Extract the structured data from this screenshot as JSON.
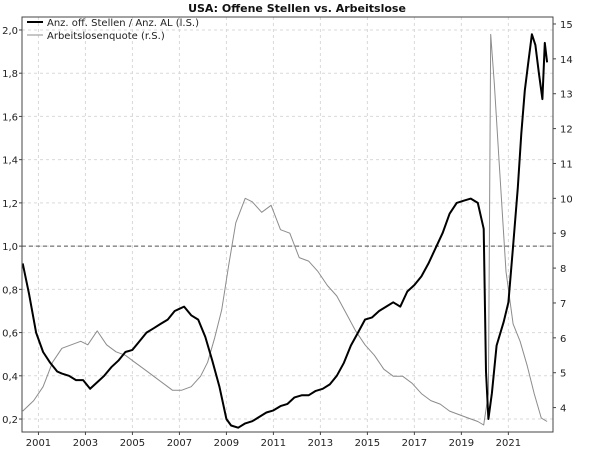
{
  "chart_data": {
    "type": "line",
    "title": "USA: Offene Stellen vs. Arbeitslose",
    "grid": true,
    "legend_position": "top-left",
    "x_axis": {
      "range": [
        2000.3,
        2022.9
      ],
      "tick_labels": [
        "2001",
        "2003",
        "2005",
        "2007",
        "2009",
        "2011",
        "2013",
        "2015",
        "2017",
        "2019",
        "2021"
      ],
      "tick_values": [
        2001,
        2003,
        2005,
        2007,
        2009,
        2011,
        2013,
        2015,
        2017,
        2019,
        2021
      ]
    },
    "y_left": {
      "range": [
        0.14,
        2.06
      ],
      "tick_labels": [
        "0,2",
        "0,4",
        "0,6",
        "0,8",
        "1,0",
        "1,2",
        "1,4",
        "1,6",
        "1,8",
        "2,0"
      ],
      "tick_values": [
        0.2,
        0.4,
        0.6,
        0.8,
        1.0,
        1.2,
        1.4,
        1.6,
        1.8,
        2.0
      ]
    },
    "y_right": {
      "range": [
        3.3,
        15.2
      ],
      "tick_labels": [
        "4",
        "5",
        "6",
        "7",
        "8",
        "9",
        "10",
        "11",
        "12",
        "13",
        "14",
        "15"
      ],
      "tick_values": [
        4,
        5,
        6,
        7,
        8,
        9,
        10,
        11,
        12,
        13,
        14,
        15
      ]
    },
    "reference_line": {
      "axis": "left",
      "value": 1.0,
      "style": "dashed"
    },
    "series": [
      {
        "name": "Anz. off. Stellen / Anz. AL (l.S.)",
        "axis": "left",
        "color": "#000000",
        "x": [
          2000.33,
          2000.6,
          2000.9,
          2001.2,
          2001.5,
          2001.8,
          2002.0,
          2002.3,
          2002.6,
          2002.9,
          2003.2,
          2003.5,
          2003.8,
          2004.1,
          2004.4,
          2004.7,
          2005.0,
          2005.3,
          2005.6,
          2005.9,
          2006.2,
          2006.5,
          2006.8,
          2007.0,
          2007.2,
          2007.5,
          2007.8,
          2008.1,
          2008.4,
          2008.7,
          2009.0,
          2009.2,
          2009.5,
          2009.8,
          2010.1,
          2010.4,
          2010.7,
          2011.0,
          2011.3,
          2011.6,
          2011.9,
          2012.2,
          2012.5,
          2012.8,
          2013.1,
          2013.4,
          2013.7,
          2014.0,
          2014.3,
          2014.6,
          2014.9,
          2015.2,
          2015.5,
          2015.8,
          2016.1,
          2016.4,
          2016.7,
          2017.0,
          2017.3,
          2017.6,
          2017.9,
          2018.2,
          2018.5,
          2018.8,
          2019.1,
          2019.4,
          2019.7,
          2019.95,
          2020.05,
          2020.15,
          2020.3,
          2020.5,
          2020.8,
          2021.0,
          2021.2,
          2021.4,
          2021.55,
          2021.7,
          2021.85,
          2022.0,
          2022.15,
          2022.3,
          2022.45,
          2022.55,
          2022.65
        ],
        "values": [
          0.92,
          0.78,
          0.6,
          0.51,
          0.46,
          0.42,
          0.41,
          0.4,
          0.38,
          0.38,
          0.34,
          0.37,
          0.4,
          0.44,
          0.47,
          0.51,
          0.52,
          0.56,
          0.6,
          0.62,
          0.64,
          0.66,
          0.7,
          0.71,
          0.72,
          0.68,
          0.66,
          0.58,
          0.47,
          0.35,
          0.2,
          0.17,
          0.16,
          0.18,
          0.19,
          0.21,
          0.23,
          0.24,
          0.26,
          0.27,
          0.3,
          0.31,
          0.31,
          0.33,
          0.34,
          0.36,
          0.4,
          0.46,
          0.54,
          0.6,
          0.66,
          0.67,
          0.7,
          0.72,
          0.74,
          0.72,
          0.79,
          0.82,
          0.86,
          0.92,
          0.99,
          1.06,
          1.15,
          1.2,
          1.21,
          1.22,
          1.2,
          1.08,
          0.42,
          0.2,
          0.32,
          0.54,
          0.65,
          0.74,
          1.0,
          1.27,
          1.52,
          1.72,
          1.85,
          1.98,
          1.93,
          1.8,
          1.68,
          1.94,
          1.85
        ]
      },
      {
        "name": "Arbeitslosenquote (r.S.)",
        "axis": "right",
        "color": "#8c8c8c",
        "x": [
          2000.33,
          2000.8,
          2001.2,
          2001.6,
          2002.0,
          2002.4,
          2002.8,
          2003.1,
          2003.5,
          2003.9,
          2004.3,
          2004.7,
          2005.1,
          2005.5,
          2005.9,
          2006.3,
          2006.7,
          2007.1,
          2007.5,
          2007.9,
          2008.2,
          2008.5,
          2008.8,
          2009.1,
          2009.4,
          2009.8,
          2010.1,
          2010.5,
          2010.9,
          2011.3,
          2011.7,
          2012.1,
          2012.5,
          2012.9,
          2013.3,
          2013.7,
          2014.1,
          2014.5,
          2014.9,
          2015.3,
          2015.7,
          2016.1,
          2016.5,
          2016.9,
          2017.3,
          2017.7,
          2018.1,
          2018.5,
          2018.9,
          2019.3,
          2019.7,
          2019.95,
          2020.15,
          2020.25,
          2020.4,
          2020.6,
          2020.9,
          2021.2,
          2021.5,
          2021.8,
          2022.1,
          2022.4,
          2022.65
        ],
        "values": [
          3.9,
          4.2,
          4.6,
          5.3,
          5.7,
          5.8,
          5.9,
          5.8,
          6.2,
          5.8,
          5.6,
          5.5,
          5.3,
          5.1,
          4.9,
          4.7,
          4.5,
          4.5,
          4.6,
          4.9,
          5.3,
          6.0,
          6.8,
          8.1,
          9.3,
          10.0,
          9.9,
          9.6,
          9.8,
          9.1,
          9.0,
          8.3,
          8.2,
          7.9,
          7.5,
          7.2,
          6.7,
          6.2,
          5.8,
          5.5,
          5.1,
          4.9,
          4.9,
          4.7,
          4.4,
          4.2,
          4.1,
          3.9,
          3.8,
          3.7,
          3.6,
          3.5,
          4.4,
          14.7,
          13.3,
          11.1,
          7.9,
          6.4,
          5.9,
          5.2,
          4.4,
          3.7,
          3.6
        ]
      }
    ]
  }
}
